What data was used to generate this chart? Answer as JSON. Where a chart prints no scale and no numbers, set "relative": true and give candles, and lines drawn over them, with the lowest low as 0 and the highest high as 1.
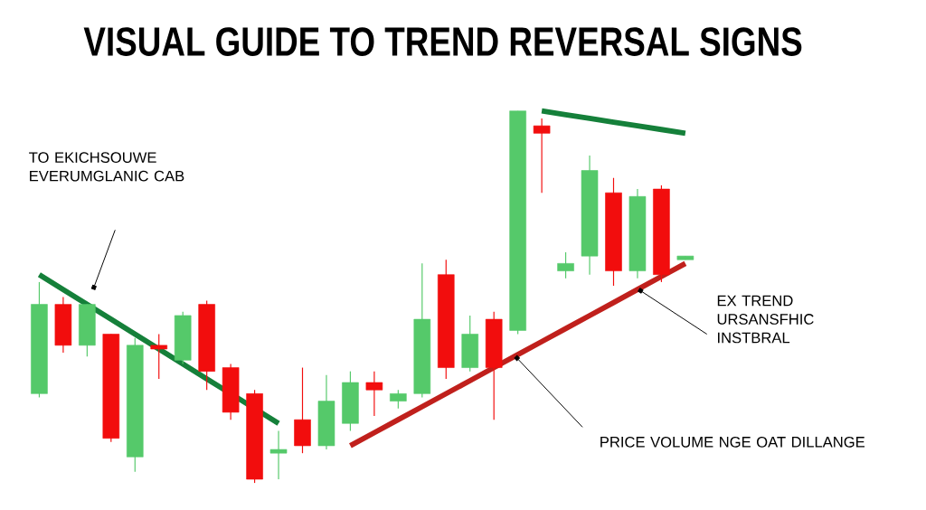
{
  "chart_data": {
    "type": "candlestick",
    "relative": true,
    "title": "VISUAL GUIDE TO TREND REVERSAL SIGNS",
    "categories": [
      null,
      null,
      null,
      null,
      null,
      null,
      null,
      null,
      null,
      null,
      null,
      null,
      null,
      null,
      null,
      null,
      null,
      null,
      null,
      null,
      null,
      null,
      null,
      null,
      null,
      null,
      null,
      null
    ],
    "ohlc": [
      [
        0.24,
        0.54,
        0.23,
        0.48
      ],
      [
        0.48,
        0.5,
        0.35,
        0.37
      ],
      [
        0.37,
        0.48,
        0.34,
        0.48
      ],
      [
        0.4,
        0.4,
        0.11,
        0.12
      ],
      [
        0.07,
        0.39,
        0.03,
        0.37
      ],
      [
        0.37,
        0.4,
        0.28,
        0.36
      ],
      [
        0.33,
        0.46,
        0.32,
        0.45
      ],
      [
        0.48,
        0.49,
        0.25,
        0.3
      ],
      [
        0.31,
        0.32,
        0.17,
        0.19
      ],
      [
        0.24,
        0.25,
        0,
        0.01
      ],
      [
        0.08,
        0.14,
        0.01,
        0.09
      ],
      [
        0.17,
        0.31,
        0.08,
        0.1
      ],
      [
        0.1,
        0.29,
        0.09,
        0.22
      ],
      [
        0.16,
        0.3,
        0.14,
        0.27
      ],
      [
        0.27,
        0.3,
        0.18,
        0.25
      ],
      [
        0.22,
        0.25,
        0.2,
        0.24
      ],
      [
        0.24,
        0.59,
        0.23,
        0.44
      ],
      [
        0.56,
        0.6,
        0.28,
        0.31
      ],
      [
        0.31,
        0.45,
        0.3,
        0.4
      ],
      [
        0.44,
        0.46,
        0.17,
        0.31
      ],
      [
        0.41,
        1,
        0.4,
        1
      ],
      [
        0.96,
        0.98,
        0.78,
        0.94
      ],
      [
        0.57,
        0.62,
        0.55,
        0.59
      ],
      [
        0.61,
        0.88,
        0.56,
        0.84
      ],
      [
        0.78,
        0.82,
        0.53,
        0.57
      ],
      [
        0.57,
        0.79,
        0.55,
        0.77
      ],
      [
        0.79,
        0.8,
        0.54,
        0.56
      ],
      [
        0.6,
        0.61,
        0.6,
        0.61
      ]
    ],
    "colors": [
      "#55c96a",
      "#f20d0d",
      "#55c96a",
      "#f20d0d",
      "#55c96a",
      "#f20d0d",
      "#55c96a",
      "#f20d0d",
      "#f20d0d",
      "#f20d0d",
      "#55c96a",
      "#f20d0d",
      "#55c96a",
      "#55c96a",
      "#f20d0d",
      "#55c96a",
      "#55c96a",
      "#f20d0d",
      "#55c96a",
      "#f20d0d",
      "#55c96a",
      "#f20d0d",
      "#55c96a",
      "#55c96a",
      "#f20d0d",
      "#55c96a",
      "#f20d0d",
      "#55c96a"
    ],
    "series": [
      {
        "type": "line",
        "values": [
          0.56,
          0.52,
          0.48,
          0.44,
          0.4,
          0.36,
          0.32,
          0.28,
          null,
          null,
          0.16,
          null,
          null,
          null,
          null,
          null,
          null,
          null,
          null,
          null,
          null,
          null,
          null,
          null,
          null,
          null,
          null,
          null
        ],
        "color": "#15803a"
      },
      {
        "type": "line",
        "values": [
          null,
          null,
          null,
          null,
          null,
          null,
          null,
          null,
          null,
          null,
          null,
          null,
          null,
          0.1,
          0.135,
          0.17,
          0.205,
          0.24,
          0.275,
          0.31,
          0.345,
          0.38,
          0.415,
          0.45,
          0.485,
          0.52,
          0.555,
          0.59
        ],
        "color": "#c0201c"
      },
      {
        "type": "line",
        "values": [
          null,
          null,
          null,
          null,
          null,
          null,
          null,
          null,
          null,
          null,
          null,
          null,
          null,
          null,
          null,
          null,
          null,
          null,
          null,
          null,
          null,
          1,
          0.99,
          0.98,
          0.97,
          0.96,
          0.95,
          0.94
        ],
        "color": "#15803a"
      }
    ],
    "annotations": [
      "TO EKICHSOUWE EVERUMGLANIC CAB",
      "EX TREND URSANSFHIC INSTBRAL",
      "PRICE VOLUME NGE OAT DILLANGE"
    ]
  }
}
